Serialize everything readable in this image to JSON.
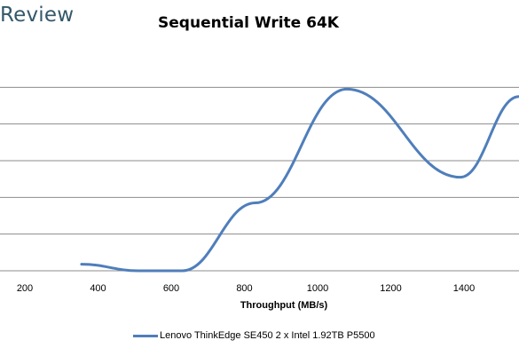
{
  "header": {
    "brand_text": "Review"
  },
  "chart_data": {
    "type": "line",
    "title": "Sequential Write 64K",
    "xlabel": "Throughput (MB/s)",
    "ylabel": "",
    "xlim": [
      200,
      1550
    ],
    "ylim": [
      0,
      6
    ],
    "x_ticks": [
      200,
      400,
      600,
      800,
      1000,
      1200,
      1400
    ],
    "x_tick_labels": [
      "200",
      "400",
      "600",
      "800",
      "1000",
      "1200",
      "1400"
    ],
    "y_gridlines": [
      1,
      2,
      3,
      4,
      5
    ],
    "grid": true,
    "smooth": true,
    "legend_position": "bottom",
    "series": [
      {
        "name": "Lenovo ThinkEdge SE450 2 x Intel 1.92TB P5500",
        "color": "#4f7ebb",
        "x": [
          355,
          510,
          630,
          830,
          1080,
          1390,
          1550
        ],
        "y": [
          0.18,
          0.0,
          0.0,
          1.85,
          4.95,
          2.55,
          4.75
        ]
      }
    ]
  }
}
